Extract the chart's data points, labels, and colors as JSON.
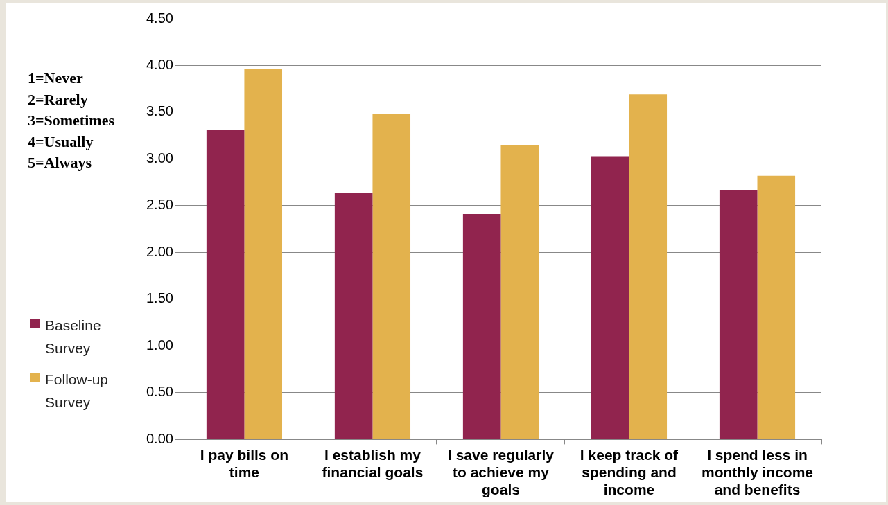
{
  "chart_data": {
    "type": "bar",
    "categories": [
      "I pay bills on time",
      "I establish my financial goals",
      "I save regularly to achieve my goals",
      "I keep track of spending and income",
      "I spend less in monthly income and benefits"
    ],
    "series": [
      {
        "name": "Baseline Survey",
        "color": "#91244e",
        "values": [
          3.31,
          2.64,
          2.41,
          3.03,
          2.67
        ]
      },
      {
        "name": "Follow-up Survey",
        "color": "#e3b24d",
        "values": [
          3.96,
          3.48,
          3.15,
          3.69,
          2.82
        ]
      }
    ],
    "ylim": [
      0,
      4.5
    ],
    "yticks": [
      {
        "value": 0,
        "label": "0.00"
      },
      {
        "value": 0.5,
        "label": "0.50"
      },
      {
        "value": 1,
        "label": "1.00"
      },
      {
        "value": 1.5,
        "label": "1.50"
      },
      {
        "value": 2,
        "label": "2.00"
      },
      {
        "value": 2.5,
        "label": "2.50"
      },
      {
        "value": 3,
        "label": "3.00"
      },
      {
        "value": 3.5,
        "label": "3.50"
      },
      {
        "value": 4,
        "label": "4.00"
      },
      {
        "value": 4.5,
        "label": "4.50"
      }
    ],
    "grid": "y",
    "legend": "left",
    "annotations": [
      "1=Never\n2=Rarely\n3=Sometimes\n4=Usually\n5=Always"
    ]
  }
}
